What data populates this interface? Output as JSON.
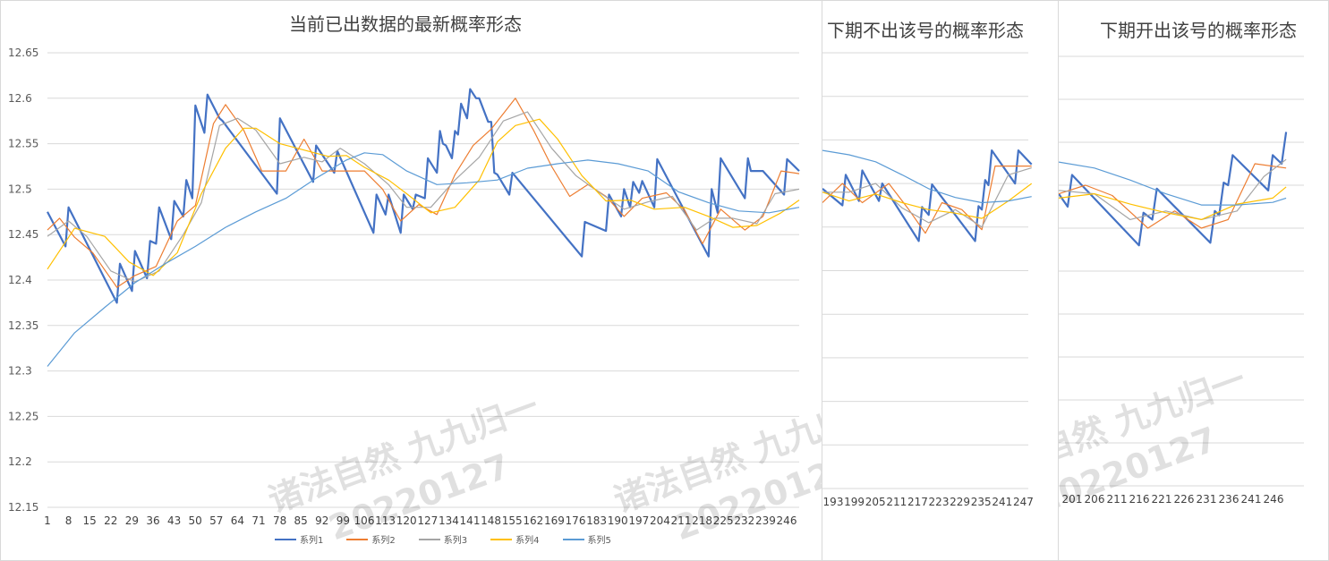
{
  "chart_data": [
    {
      "type": "line",
      "title": "当前已出数据的最新概率形态",
      "ylim": [
        12.15,
        12.65
      ],
      "yticks": [
        12.65,
        12.6,
        12.55,
        12.5,
        12.45,
        12.4,
        12.35,
        12.3,
        12.25,
        12.2,
        12.15
      ],
      "ytick_labels": [
        "12.65",
        "12.6",
        "12.55",
        "12.5",
        "12.45",
        "12.4",
        "12.35",
        "12.3",
        "12.25",
        "12.2",
        "12.15"
      ],
      "xlim": [
        1,
        250
      ],
      "xtick_labels": [
        "1",
        "8",
        "15",
        "22",
        "29",
        "36",
        "43",
        "50",
        "57",
        "64",
        "71",
        "78",
        "85",
        "92",
        "99",
        "106",
        "113",
        "120",
        "127",
        "134",
        "141",
        "148",
        "155",
        "162",
        "169",
        "176",
        "183",
        "190",
        "197",
        "204",
        "211",
        "218",
        "225",
        "232",
        "239",
        "246"
      ],
      "grid": true,
      "legend": "bottom",
      "series": [
        {
          "name": "系列1",
          "color": "#4472c4",
          "x": [
            1,
            7,
            8,
            24,
            25,
            29,
            30,
            34,
            35,
            37,
            38,
            42,
            43,
            46,
            47,
            49,
            50,
            53,
            54,
            58,
            59,
            77,
            78,
            89,
            90,
            96,
            97,
            109,
            110,
            113,
            114,
            118,
            119,
            122,
            123,
            126,
            127,
            130,
            131,
            132,
            133,
            135,
            136,
            137,
            138,
            140,
            141,
            143,
            144,
            147,
            148,
            149,
            150,
            154,
            155,
            178,
            179,
            186,
            187,
            191,
            192,
            194,
            195,
            197,
            198,
            202,
            203,
            220,
            221,
            223,
            224,
            232,
            233,
            234,
            235,
            237,
            238,
            245,
            246,
            250
          ],
          "y": [
            12.475,
            12.437,
            12.48,
            12.375,
            12.418,
            12.388,
            12.432,
            12.402,
            12.443,
            12.44,
            12.48,
            12.445,
            12.487,
            12.47,
            12.51,
            12.49,
            12.592,
            12.562,
            12.604,
            12.578,
            12.575,
            12.495,
            12.578,
            12.508,
            12.548,
            12.518,
            12.542,
            12.452,
            12.494,
            12.472,
            12.494,
            12.452,
            12.494,
            12.478,
            12.494,
            12.49,
            12.534,
            12.518,
            12.564,
            12.55,
            12.548,
            12.534,
            12.564,
            12.56,
            12.594,
            12.578,
            12.61,
            12.6,
            12.6,
            12.574,
            12.574,
            12.518,
            12.516,
            12.494,
            12.518,
            12.426,
            12.464,
            12.454,
            12.494,
            12.47,
            12.5,
            12.48,
            12.508,
            12.496,
            12.509,
            12.48,
            12.533,
            12.426,
            12.5,
            12.474,
            12.534,
            12.49,
            12.534,
            12.52,
            12.52,
            12.52,
            12.52,
            12.494,
            12.533,
            12.52
          ]
        },
        {
          "name": "系列2",
          "color": "#ed7d31",
          "x": [
            1,
            5,
            10,
            16,
            24,
            30,
            37,
            44,
            50,
            56,
            60,
            66,
            72,
            80,
            86,
            92,
            99,
            106,
            112,
            118,
            124,
            130,
            136,
            142,
            148,
            156,
            162,
            168,
            174,
            180,
            186,
            192,
            198,
            206,
            212,
            218,
            224,
            232,
            238,
            244,
            250
          ],
          "y": [
            12.455,
            12.468,
            12.447,
            12.43,
            12.392,
            12.405,
            12.415,
            12.465,
            12.482,
            12.572,
            12.593,
            12.565,
            12.52,
            12.52,
            12.555,
            12.52,
            12.52,
            12.52,
            12.5,
            12.465,
            12.483,
            12.472,
            12.516,
            12.548,
            12.566,
            12.6,
            12.565,
            12.525,
            12.492,
            12.505,
            12.492,
            12.47,
            12.49,
            12.496,
            12.477,
            12.44,
            12.478,
            12.455,
            12.47,
            12.52,
            12.517
          ]
        },
        {
          "name": "系列3",
          "color": "#a5a5a5",
          "x": [
            1,
            8,
            14,
            22,
            30,
            38,
            46,
            52,
            58,
            64,
            70,
            78,
            86,
            92,
            98,
            106,
            114,
            120,
            128,
            136,
            144,
            152,
            160,
            168,
            176,
            184,
            192,
            200,
            208,
            216,
            222,
            228,
            236,
            242,
            250
          ],
          "y": [
            12.448,
            12.465,
            12.448,
            12.41,
            12.398,
            12.41,
            12.45,
            12.485,
            12.57,
            12.578,
            12.565,
            12.528,
            12.535,
            12.53,
            12.545,
            12.528,
            12.505,
            12.48,
            12.48,
            12.51,
            12.535,
            12.575,
            12.585,
            12.545,
            12.515,
            12.496,
            12.478,
            12.486,
            12.492,
            12.455,
            12.468,
            12.468,
            12.462,
            12.495,
            12.5
          ]
        },
        {
          "name": "系列4",
          "color": "#ffc000",
          "x": [
            1,
            10,
            20,
            28,
            36,
            44,
            52,
            60,
            66,
            70,
            78,
            86,
            94,
            100,
            106,
            114,
            120,
            128,
            136,
            144,
            150,
            156,
            164,
            170,
            178,
            186,
            194,
            202,
            212,
            220,
            228,
            236,
            244,
            250
          ],
          "y": [
            12.412,
            12.457,
            12.448,
            12.42,
            12.405,
            12.43,
            12.495,
            12.545,
            12.567,
            12.567,
            12.55,
            12.543,
            12.536,
            12.537,
            12.524,
            12.51,
            12.495,
            12.474,
            12.48,
            12.51,
            12.552,
            12.57,
            12.577,
            12.555,
            12.515,
            12.487,
            12.488,
            12.478,
            12.48,
            12.47,
            12.458,
            12.46,
            12.474,
            12.488
          ]
        },
        {
          "name": "系列5",
          "color": "#5b9bd5",
          "x": [
            1,
            10,
            20,
            30,
            40,
            50,
            60,
            70,
            80,
            90,
            100,
            106,
            112,
            120,
            130,
            140,
            150,
            160,
            170,
            180,
            190,
            200,
            210,
            220,
            230,
            240,
            250
          ],
          "y": [
            12.305,
            12.342,
            12.37,
            12.397,
            12.418,
            12.437,
            12.458,
            12.475,
            12.49,
            12.512,
            12.532,
            12.54,
            12.538,
            12.52,
            12.505,
            12.507,
            12.51,
            12.523,
            12.528,
            12.532,
            12.528,
            12.52,
            12.497,
            12.485,
            12.476,
            12.474,
            12.48
          ]
        }
      ]
    },
    {
      "type": "line",
      "title": "下期不出该号的概率形态",
      "ylim": [
        12.15,
        12.65
      ],
      "xlim": [
        188,
        250
      ],
      "xtick_labels": [
        "193",
        "199",
        "205",
        "211",
        "217",
        "223",
        "229",
        "235",
        "241",
        "247"
      ],
      "grid": true,
      "series": [
        {
          "color": "#4472c4",
          "x": [
            188,
            194,
            195,
            199,
            200,
            205,
            206,
            217,
            218,
            220,
            221,
            234,
            235,
            236,
            237,
            238,
            239,
            246,
            247,
            251
          ],
          "y": [
            12.494,
            12.475,
            12.51,
            12.48,
            12.515,
            12.48,
            12.5,
            12.434,
            12.473,
            12.464,
            12.499,
            12.434,
            12.474,
            12.47,
            12.504,
            12.498,
            12.538,
            12.5,
            12.538,
            12.522
          ]
        },
        {
          "color": "#ed7d31",
          "x": [
            188,
            194,
            200,
            208,
            214,
            219,
            224,
            230,
            236,
            240,
            246,
            251
          ],
          "y": [
            12.478,
            12.5,
            12.478,
            12.5,
            12.47,
            12.443,
            12.478,
            12.47,
            12.447,
            12.52,
            12.52,
            12.52
          ]
        },
        {
          "color": "#a5a5a5",
          "x": [
            188,
            196,
            204,
            212,
            220,
            228,
            236,
            244,
            251
          ],
          "y": [
            12.49,
            12.49,
            12.5,
            12.472,
            12.455,
            12.47,
            12.45,
            12.51,
            12.518
          ]
        },
        {
          "color": "#ffc000",
          "x": [
            188,
            196,
            204,
            212,
            220,
            228,
            236,
            244,
            251
          ],
          "y": [
            12.49,
            12.48,
            12.488,
            12.478,
            12.47,
            12.466,
            12.46,
            12.48,
            12.5
          ]
        },
        {
          "color": "#5b9bd5",
          "x": [
            188,
            196,
            204,
            212,
            220,
            228,
            236,
            244,
            251
          ],
          "y": [
            12.538,
            12.533,
            12.525,
            12.51,
            12.494,
            12.484,
            12.478,
            12.48,
            12.485
          ]
        }
      ]
    },
    {
      "type": "line",
      "title": "下期开出该号的概率形态",
      "ylim": [
        12.15,
        12.65
      ],
      "xlim": [
        198,
        253
      ],
      "xtick_labels": [
        "201",
        "206",
        "211",
        "216",
        "221",
        "226",
        "231",
        "236",
        "241",
        "246"
      ],
      "grid": true,
      "series": [
        {
          "color": "#4472c4",
          "x": [
            198,
            200,
            201,
            216,
            217,
            219,
            220,
            232,
            233,
            234,
            235,
            236,
            237,
            245,
            246,
            248,
            249
          ],
          "y": [
            12.49,
            12.475,
            12.512,
            12.43,
            12.468,
            12.46,
            12.496,
            12.433,
            12.47,
            12.465,
            12.503,
            12.5,
            12.535,
            12.494,
            12.535,
            12.525,
            12.562
          ]
        },
        {
          "color": "#ed7d31",
          "x": [
            198,
            204,
            210,
            218,
            224,
            230,
            236,
            242,
            249
          ],
          "y": [
            12.49,
            12.5,
            12.488,
            12.45,
            12.47,
            12.45,
            12.46,
            12.525,
            12.52
          ]
        },
        {
          "color": "#a5a5a5",
          "x": [
            198,
            206,
            214,
            222,
            230,
            238,
            244,
            249
          ],
          "y": [
            12.494,
            12.49,
            12.46,
            12.47,
            12.46,
            12.47,
            12.51,
            12.53
          ]
        },
        {
          "color": "#ffc000",
          "x": [
            198,
            206,
            214,
            222,
            230,
            238,
            246,
            249
          ],
          "y": [
            12.485,
            12.49,
            12.478,
            12.468,
            12.46,
            12.478,
            12.485,
            12.498
          ]
        },
        {
          "color": "#5b9bd5",
          "x": [
            198,
            206,
            214,
            222,
            230,
            238,
            246,
            249
          ],
          "y": [
            12.527,
            12.52,
            12.506,
            12.49,
            12.477,
            12.477,
            12.48,
            12.485
          ]
        }
      ]
    }
  ],
  "watermark": {
    "line1": "诸法自然 九九归一",
    "line2": "20220127"
  }
}
